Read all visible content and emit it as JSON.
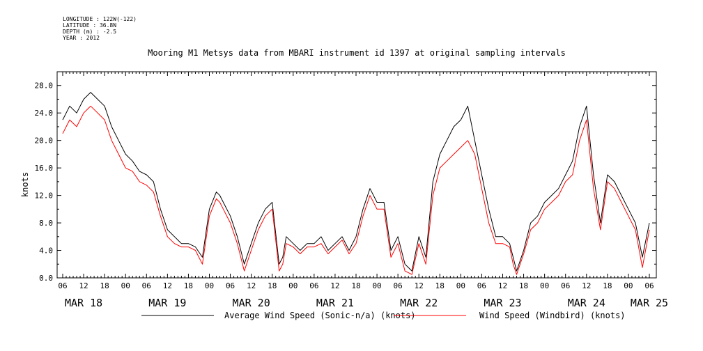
{
  "meta": {
    "longitude": "LONGITUDE : 122W(-122)",
    "latitude": "LATITUDE : 36.8N",
    "depth": "DEPTH (m) : -2.5",
    "year": "YEAR : 2012"
  },
  "chart_data": {
    "type": "line",
    "title": "Mooring M1 Metsys data from MBARI instrument id 1397 at original sampling intervals",
    "ylabel": "knots",
    "xlabel": "",
    "ylim": [
      0,
      30
    ],
    "x_range_hours": [
      0,
      168
    ],
    "x_start": "2012-03-18 06:00",
    "y_ticks": [
      "0.0",
      "4.0",
      "8.0",
      "12.0",
      "16.0",
      "20.0",
      "24.0",
      "28.0"
    ],
    "x_tick_labels": [
      "06",
      "12",
      "18",
      "00",
      "06",
      "12",
      "18",
      "00",
      "06",
      "12",
      "18",
      "00",
      "06",
      "12",
      "18",
      "00",
      "06",
      "12",
      "18",
      "00",
      "06",
      "12",
      "18",
      "00",
      "06",
      "12",
      "18",
      "00",
      "06"
    ],
    "date_labels": [
      "MAR 18",
      "MAR 19",
      "MAR 20",
      "MAR 21",
      "MAR 22",
      "MAR 23",
      "MAR 24",
      "MAR 25"
    ],
    "grid": false,
    "legend_position": "bottom",
    "series": [
      {
        "name": "Average Wind Speed (Sonic-n/a) (knots)",
        "color": "#000000",
        "x": [
          0,
          1,
          2,
          4,
          6,
          8,
          10,
          12,
          14,
          16,
          18,
          20,
          22,
          24,
          26,
          28,
          30,
          32,
          34,
          36,
          38,
          40,
          42,
          44,
          45,
          46,
          48,
          50,
          52,
          54,
          56,
          57,
          58,
          60,
          62,
          63,
          64,
          66,
          68,
          70,
          72,
          74,
          76,
          78,
          80,
          82,
          84,
          86,
          88,
          90,
          92,
          94,
          96,
          98,
          100,
          102,
          104,
          106,
          108,
          110,
          112,
          114,
          116,
          118,
          120,
          122,
          124,
          126,
          128,
          129,
          130,
          132,
          134,
          136,
          138,
          140,
          142,
          144,
          146,
          148,
          150,
          152,
          154,
          156,
          158,
          160,
          162,
          164,
          166,
          168
        ],
        "y": [
          23,
          24,
          25,
          24,
          26,
          27,
          26,
          25,
          22,
          20,
          18,
          17,
          15.5,
          15,
          14,
          10,
          7,
          6,
          5,
          5,
          4.5,
          3,
          10,
          12.5,
          12,
          11,
          9,
          6,
          2,
          5,
          8,
          9,
          10,
          11,
          2,
          3,
          6,
          5,
          4,
          5,
          5,
          6,
          4,
          5,
          6,
          4,
          6,
          10,
          13,
          11,
          11,
          4,
          6,
          2,
          1,
          6,
          3,
          14,
          18,
          20,
          22,
          23,
          25,
          20,
          15,
          10,
          6,
          6,
          5,
          3,
          1,
          4,
          8,
          9,
          11,
          12,
          13,
          15,
          17,
          22,
          25,
          15,
          8,
          15,
          14,
          12,
          10,
          8,
          3,
          8
        ]
      },
      {
        "name": "Wind Speed (Windbird) (knots)",
        "color": "#ff0000",
        "x": [
          0,
          1,
          2,
          4,
          6,
          8,
          10,
          12,
          14,
          16,
          18,
          20,
          22,
          24,
          26,
          28,
          30,
          32,
          34,
          36,
          38,
          40,
          42,
          44,
          45,
          46,
          48,
          50,
          52,
          54,
          56,
          57,
          58,
          60,
          62,
          63,
          64,
          66,
          68,
          70,
          72,
          74,
          76,
          78,
          80,
          82,
          84,
          86,
          88,
          90,
          92,
          94,
          96,
          98,
          100,
          102,
          104,
          106,
          108,
          110,
          112,
          114,
          116,
          118,
          120,
          122,
          124,
          126,
          128,
          129,
          130,
          132,
          134,
          136,
          138,
          140,
          142,
          144,
          146,
          148,
          150,
          152,
          154,
          156,
          158,
          160,
          162,
          164,
          166,
          168
        ],
        "y": [
          21,
          22,
          23,
          22,
          24,
          25,
          24,
          23,
          20,
          18,
          16,
          15.5,
          14,
          13.5,
          12.5,
          9,
          6,
          5,
          4.5,
          4.5,
          4,
          2,
          9,
          11.5,
          11,
          10,
          8,
          5,
          1,
          4,
          7,
          8,
          9,
          10,
          1,
          2,
          5,
          4.5,
          3.5,
          4.5,
          4.5,
          5,
          3.5,
          4.5,
          5.5,
          3.5,
          5,
          9,
          12,
          10,
          10,
          3,
          5,
          1,
          0.5,
          5,
          2,
          12,
          16,
          17,
          18,
          19,
          20,
          18,
          13,
          8,
          5,
          5,
          4.5,
          2,
          0.5,
          3.5,
          7,
          8,
          10,
          11,
          12,
          14,
          15,
          20,
          23,
          13,
          7,
          14,
          13,
          11,
          9,
          7,
          1.5,
          7
        ]
      }
    ]
  }
}
